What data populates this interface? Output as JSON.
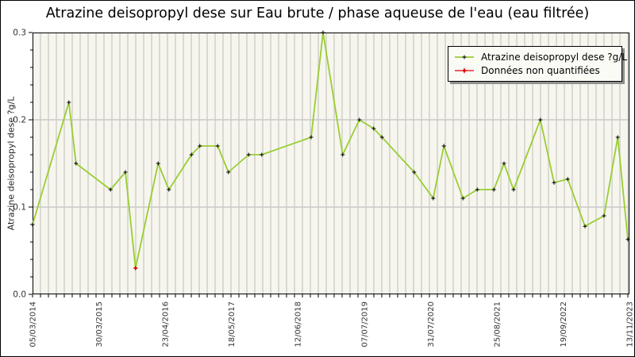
{
  "title": "Atrazine deisopropyl dese sur Eau brute / phase aqueuse de l'eau (eau filtrée)",
  "y_axis_title": "Atrazine deisopropyl dese ?g/L",
  "legend": {
    "items": [
      {
        "label": "Atrazine deisopropyl dese ?g/L",
        "marker": "green-line-black-plus"
      },
      {
        "label": "Données non quantifiées",
        "marker": "red-line-red-star"
      }
    ]
  },
  "colors": {
    "series_line": "#9acd32",
    "marker": "#000000",
    "non_quantified": "#dd0000",
    "plot_background": "#f6f6ef",
    "grid_vertical": "#dadad2",
    "grid_horizontal": "#c9c9c9",
    "axis_frame": "#000000",
    "axis_text": "#333333",
    "legend_background": "#fbfbf6",
    "legend_shadow": "#8f8f8f"
  },
  "chart_data": {
    "type": "line",
    "title": "Atrazine deisopropyl dese sur Eau brute / phase aqueuse de l'eau (eau filtrée)",
    "xlabel": "",
    "ylabel": "Atrazine deisopropyl dese ?g/L",
    "ylim": [
      0,
      0.3
    ],
    "y_major_ticks": [
      0,
      0.1,
      0.2,
      0.3
    ],
    "y_tick_labels": [
      "0.0",
      "0.1",
      "0.2",
      "0.3"
    ],
    "y_minor_step": 0.02,
    "x_range": [
      "05/03/2014",
      "13/11/2023"
    ],
    "x_tick_labels": [
      "05/03/2014",
      "30/03/2015",
      "23/04/2016",
      "18/05/2017",
      "12/06/2018",
      "07/07/2019",
      "31/07/2020",
      "25/08/2021",
      "19/09/2022",
      "13/11/2023"
    ],
    "grid": {
      "vertical_minor": true,
      "horizontal_major": true
    },
    "legend_position": "top-right",
    "series": [
      {
        "name": "Atrazine deisopropyl dese ?g/L",
        "color": "#9acd32",
        "marker": "black-plus",
        "points": [
          {
            "x": 0.0,
            "y": 0.08
          },
          {
            "x": 0.061,
            "y": 0.22
          },
          {
            "x": 0.073,
            "y": 0.15
          },
          {
            "x": 0.131,
            "y": 0.12
          },
          {
            "x": 0.156,
            "y": 0.14
          },
          {
            "x": 0.173,
            "y": 0.03,
            "non_quantified": true
          },
          {
            "x": 0.211,
            "y": 0.15
          },
          {
            "x": 0.229,
            "y": 0.12
          },
          {
            "x": 0.267,
            "y": 0.16
          },
          {
            "x": 0.281,
            "y": 0.17
          },
          {
            "x": 0.311,
            "y": 0.17
          },
          {
            "x": 0.329,
            "y": 0.14
          },
          {
            "x": 0.363,
            "y": 0.16
          },
          {
            "x": 0.385,
            "y": 0.16
          },
          {
            "x": 0.468,
            "y": 0.18
          },
          {
            "x": 0.488,
            "y": 0.3
          },
          {
            "x": 0.521,
            "y": 0.16
          },
          {
            "x": 0.549,
            "y": 0.2
          },
          {
            "x": 0.573,
            "y": 0.19
          },
          {
            "x": 0.587,
            "y": 0.18
          },
          {
            "x": 0.641,
            "y": 0.14
          },
          {
            "x": 0.673,
            "y": 0.11
          },
          {
            "x": 0.691,
            "y": 0.17
          },
          {
            "x": 0.723,
            "y": 0.11
          },
          {
            "x": 0.747,
            "y": 0.12
          },
          {
            "x": 0.775,
            "y": 0.12
          },
          {
            "x": 0.792,
            "y": 0.15
          },
          {
            "x": 0.808,
            "y": 0.12
          },
          {
            "x": 0.853,
            "y": 0.2
          },
          {
            "x": 0.876,
            "y": 0.128
          },
          {
            "x": 0.899,
            "y": 0.132
          },
          {
            "x": 0.928,
            "y": 0.078
          },
          {
            "x": 0.96,
            "y": 0.09
          },
          {
            "x": 0.983,
            "y": 0.18
          },
          {
            "x": 1.0,
            "y": 0.063
          }
        ]
      }
    ],
    "non_quantified_series_name": "Données non quantifiées"
  }
}
